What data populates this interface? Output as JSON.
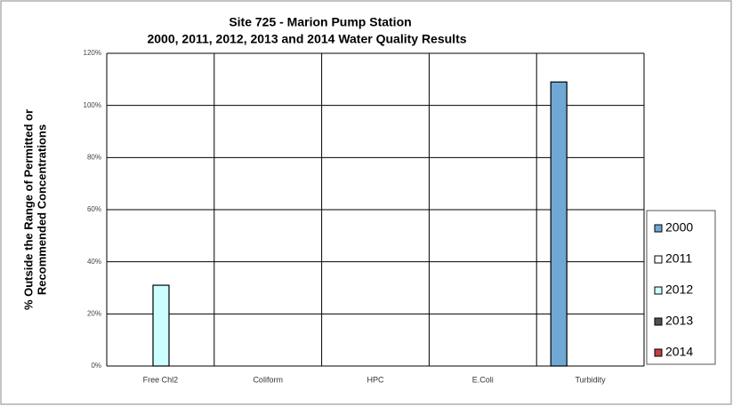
{
  "chart_data": {
    "type": "bar",
    "title": "Site 725 - Marion Pump Station",
    "subtitle": "2000, 2011, 2012, 2013 and 2014 Water Quality Results",
    "y_label": [
      "% Outside the Range of Permitted or",
      "Recommended Concentrations"
    ],
    "categories": [
      "Free Chl2",
      "Coliform",
      "HPC",
      "E.Coli",
      "Turbidity"
    ],
    "series": [
      {
        "name": "2000",
        "color": "#6fa8d4",
        "values": [
          null,
          null,
          null,
          null,
          109
        ]
      },
      {
        "name": "2011",
        "color": "#ffffff",
        "values": [
          null,
          null,
          null,
          null,
          null
        ]
      },
      {
        "name": "2012",
        "color": "#ccffff",
        "values": [
          31,
          null,
          null,
          null,
          null
        ]
      },
      {
        "name": "2013",
        "color": "#505050",
        "values": [
          null,
          null,
          null,
          null,
          null
        ]
      },
      {
        "name": "2014",
        "color": "#c04040",
        "values": [
          null,
          null,
          null,
          null,
          null
        ]
      }
    ],
    "ylim": [
      0,
      120
    ],
    "yticks": [
      {
        "value": 0,
        "label": "0%"
      },
      {
        "value": 20,
        "label": "20%"
      },
      {
        "value": 40,
        "label": "40%"
      },
      {
        "value": 60,
        "label": "60%"
      },
      {
        "value": 80,
        "label": "80%"
      },
      {
        "value": 100,
        "label": "100%"
      },
      {
        "value": 120,
        "label": "120%"
      }
    ],
    "grid": true,
    "legend": "right"
  }
}
